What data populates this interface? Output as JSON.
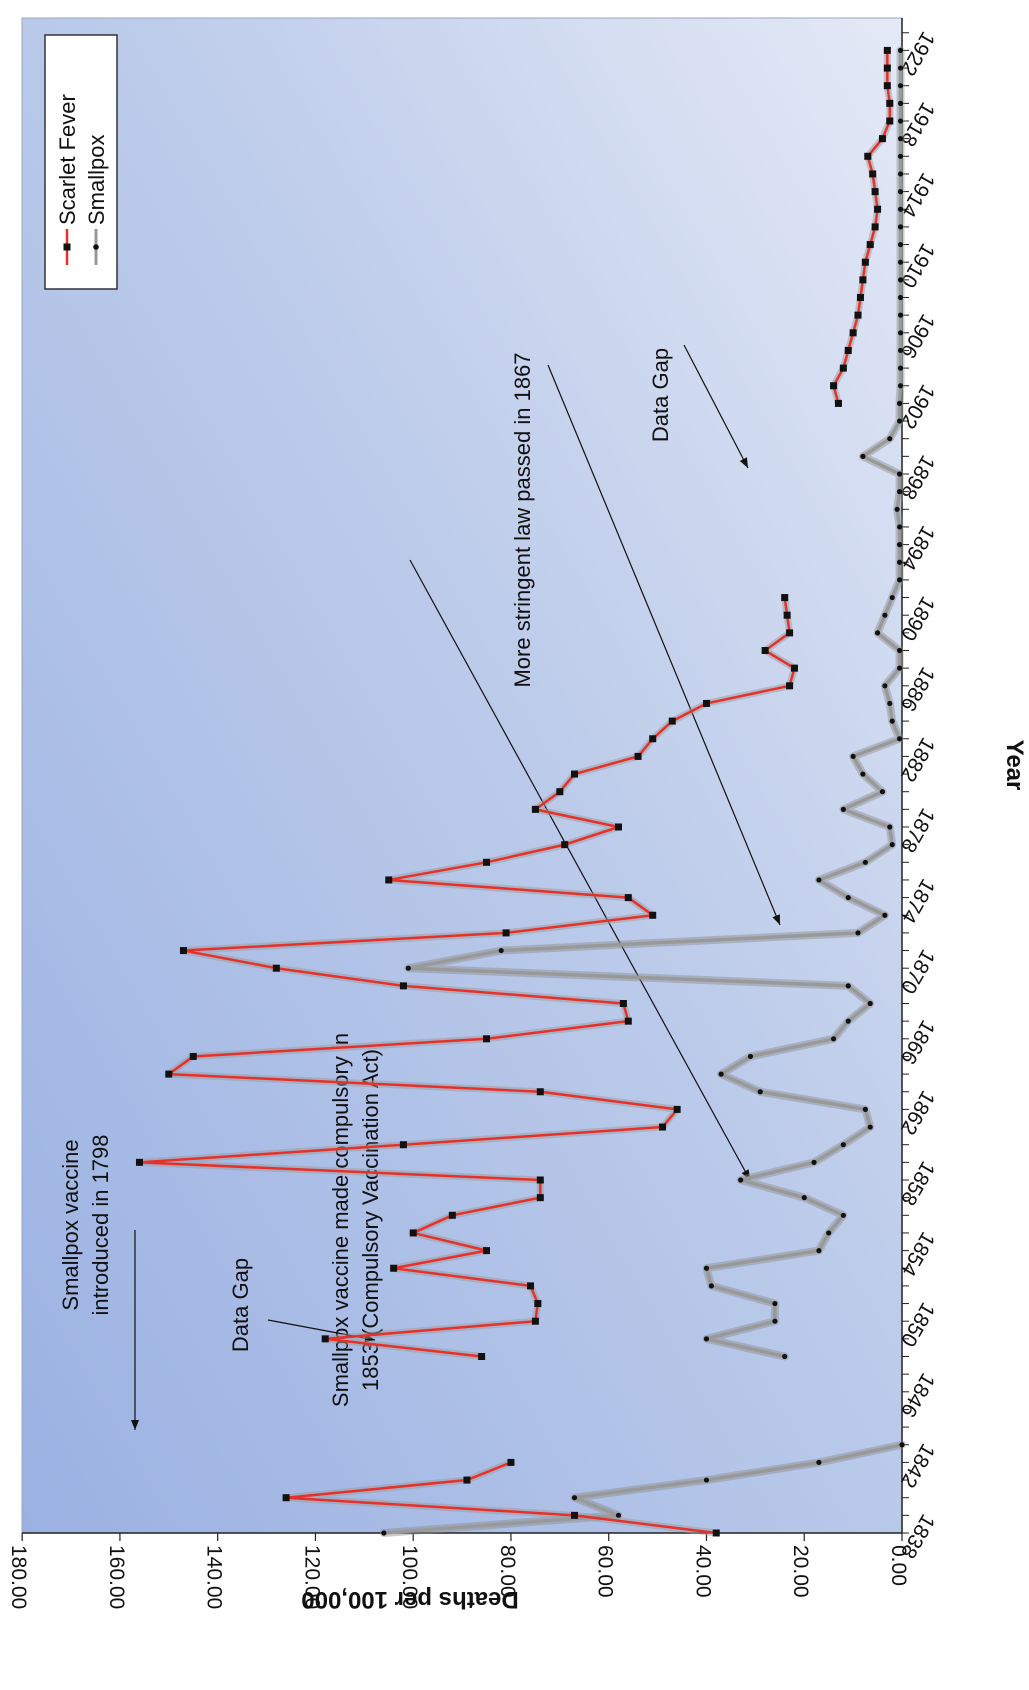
{
  "chart_data": {
    "type": "line",
    "orientation": "rotated 90 degrees clockwise",
    "xlabel": "Year",
    "ylabel": "Deaths per 100,000",
    "xlim": [
      1838,
      1923
    ],
    "ylim": [
      0,
      180
    ],
    "x_ticks": [
      "1838",
      "1842",
      "1846",
      "1850",
      "1854",
      "1858",
      "1862",
      "1866",
      "1870",
      "1874",
      "1878",
      "1882",
      "1886",
      "1890",
      "1894",
      "1898",
      "1902",
      "1906",
      "1910",
      "1914",
      "1918",
      "1922"
    ],
    "y_ticks": [
      "0.00",
      "20.00",
      "40.00",
      "60.00",
      "80.00",
      "100.00",
      "120.00",
      "140.00",
      "160.00",
      "180.00"
    ],
    "grid": false,
    "background": "blue gradient",
    "legend": {
      "placement": "top-right",
      "entries": [
        "Scarlet Fever",
        "Smallpox"
      ]
    },
    "series": [
      {
        "name": "Scarlet Fever",
        "color": "#e8302a",
        "marker": "square",
        "x": [
          1838,
          1839,
          1840,
          1841,
          1842,
          1848,
          1849,
          1850,
          1851,
          1852,
          1853,
          1854,
          1855,
          1856,
          1857,
          1858,
          1859,
          1860,
          1861,
          1862,
          1863,
          1864,
          1865,
          1866,
          1867,
          1868,
          1869,
          1870,
          1871,
          1872,
          1873,
          1874,
          1875,
          1876,
          1877,
          1878,
          1879,
          1880,
          1881,
          1882,
          1883,
          1884,
          1885,
          1886,
          1887,
          1888,
          1889,
          1890,
          1891,
          1902,
          1903,
          1904,
          1905,
          1906,
          1907,
          1908,
          1909,
          1910,
          1911,
          1912,
          1913,
          1914,
          1915,
          1916,
          1917,
          1918,
          1919,
          1920,
          1921,
          1922
        ],
        "values": [
          38.0,
          67.0,
          126.0,
          89.0,
          80.0,
          86.0,
          118.0,
          75.0,
          74.5,
          76.0,
          104.0,
          85.0,
          100.0,
          92.0,
          74.0,
          74.0,
          156.0,
          102.0,
          49.0,
          46.0,
          74.0,
          150.0,
          145.0,
          85.0,
          56.0,
          57.0,
          102.0,
          128.0,
          147.0,
          81.0,
          51.0,
          56.0,
          105.0,
          85.0,
          69.0,
          58.0,
          75.0,
          70.0,
          67.0,
          54.0,
          51.0,
          47.0,
          40.0,
          23.0,
          22.0,
          28.0,
          23.0,
          23.5,
          24.0,
          13.0,
          14.0,
          12.0,
          11.0,
          10.0,
          9.0,
          8.5,
          8.0,
          7.5,
          6.5,
          5.5,
          5.0,
          5.5,
          6.0,
          7.0,
          4.0,
          2.5,
          2.5,
          3.0,
          3.0,
          3.0
        ]
      },
      {
        "name": "Smallpox",
        "color": "#999999",
        "marker": "dot",
        "x": [
          1838,
          1839,
          1840,
          1841,
          1842,
          1843,
          1848,
          1849,
          1850,
          1851,
          1852,
          1853,
          1854,
          1855,
          1856,
          1857,
          1858,
          1859,
          1860,
          1861,
          1862,
          1863,
          1864,
          1865,
          1866,
          1867,
          1868,
          1869,
          1870,
          1871,
          1872,
          1873,
          1874,
          1875,
          1876,
          1877,
          1878,
          1879,
          1880,
          1881,
          1882,
          1883,
          1884,
          1885,
          1886,
          1887,
          1888,
          1889,
          1890,
          1891,
          1892,
          1893,
          1894,
          1895,
          1896,
          1897,
          1898,
          1899,
          1900,
          1901,
          1902,
          1903,
          1904,
          1905,
          1906,
          1907,
          1908,
          1909,
          1910,
          1911,
          1912,
          1913,
          1914,
          1915,
          1916,
          1917,
          1918,
          1919,
          1920,
          1921,
          1922
        ],
        "values": [
          106.0,
          58.0,
          67.0,
          40.0,
          17.0,
          0.0,
          24.0,
          40.0,
          26.0,
          26.0,
          39.0,
          40.0,
          17.0,
          15.0,
          12.0,
          20.0,
          33.0,
          18.0,
          12.0,
          6.5,
          7.5,
          29.0,
          37.0,
          31.0,
          14.0,
          11.0,
          6.5,
          11.0,
          101.0,
          82.0,
          9.0,
          3.5,
          11.0,
          17.0,
          7.5,
          2.0,
          2.5,
          12.0,
          4.0,
          8.0,
          10.0,
          0.5,
          2.0,
          2.5,
          3.5,
          0.5,
          0.5,
          5.0,
          3.5,
          2.0,
          0.5,
          0.5,
          0.5,
          0.5,
          1.0,
          0.5,
          0.5,
          8.0,
          2.5,
          0.5,
          0.5,
          0.3,
          0.3,
          0.3,
          0.3,
          0.3,
          0.3,
          0.3,
          0.3,
          0.3,
          0.3,
          0.3,
          0.3,
          0.3,
          0.3,
          0.3,
          0.3,
          0.3,
          0.3,
          0.3,
          0.3
        ]
      }
    ],
    "annotations": [
      {
        "text": "Smallpox vaccine introduced in 1798",
        "lines": [
          "Smallpox vaccine",
          "introduced in 1798"
        ]
      },
      {
        "text": "Data Gap",
        "lines": [
          "Data Gap"
        ]
      },
      {
        "text": "Smallpox vaccine made compulsory in 1853 (Compulsory Vaccination Act)",
        "lines": [
          "Smallpox vaccine made compulsory in",
          "1853 (Compulsory Vaccination Act)"
        ]
      },
      {
        "text": "More stringent law passed in 1867",
        "lines": [
          "More stringent law passed in 1867"
        ]
      },
      {
        "text": "Data Gap",
        "lines": [
          "Data Gap"
        ]
      }
    ]
  }
}
